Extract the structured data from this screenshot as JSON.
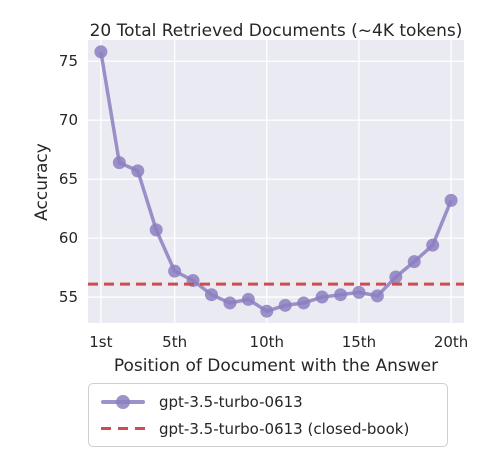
{
  "chart_data": {
    "type": "line",
    "title": "20 Total Retrieved Documents (~4K tokens)",
    "xlabel": "Position of Document with the Answer",
    "ylabel": "Accuracy",
    "xlim": [
      0.3,
      20.7
    ],
    "ylim": [
      52.8,
      76.8
    ],
    "x_ticks": [
      1,
      5,
      10,
      15,
      20
    ],
    "x_tick_labels": [
      "1st",
      "5th",
      "10th",
      "15th",
      "20th"
    ],
    "y_ticks": [
      55,
      60,
      65,
      70,
      75
    ],
    "y_tick_labels": [
      "55",
      "60",
      "65",
      "70",
      "75"
    ],
    "grid": true,
    "legend_position": "bottom-outside",
    "series": [
      {
        "name": "gpt-3.5-turbo-0613",
        "style": "line-markers",
        "color": "#8c7fc0",
        "x": [
          1,
          2,
          3,
          4,
          5,
          6,
          7,
          8,
          9,
          10,
          11,
          12,
          13,
          14,
          15,
          16,
          17,
          18,
          19,
          20
        ],
        "y": [
          75.8,
          66.4,
          65.7,
          60.7,
          57.2,
          56.4,
          55.2,
          54.5,
          54.8,
          53.8,
          54.3,
          54.5,
          55.0,
          55.2,
          55.4,
          55.1,
          56.7,
          58.0,
          59.4,
          63.2
        ]
      },
      {
        "name": "gpt-3.5-turbo-0613 (closed-book)",
        "style": "dashed-hline",
        "color": "#d14b4e",
        "y": 56.1
      }
    ]
  }
}
